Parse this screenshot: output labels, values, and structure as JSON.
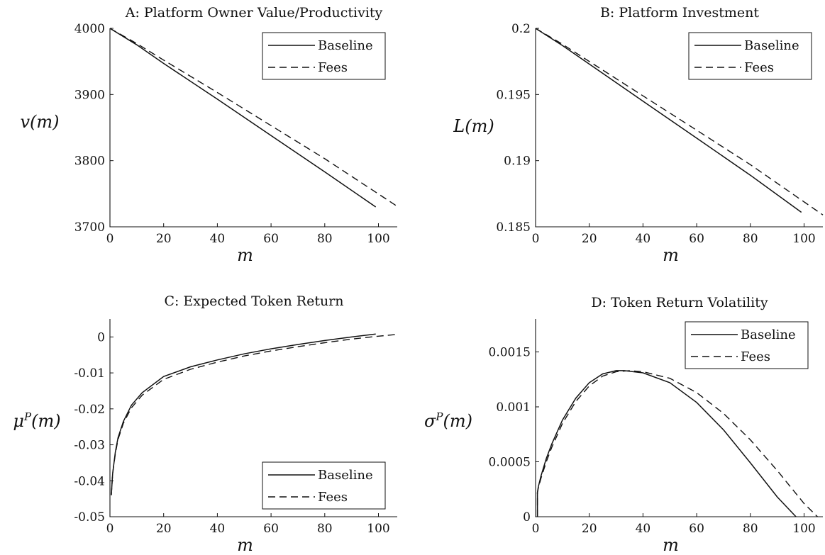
{
  "chart_data": [
    {
      "type": "line",
      "title": "A: Platform Owner Value/Productivity",
      "xlabel": "m",
      "ylabel": "v(m)",
      "xlim": [
        0,
        107
      ],
      "ylim": [
        3700,
        4000
      ],
      "xticks": [
        0,
        20,
        40,
        60,
        80,
        100
      ],
      "yticks": [
        3700,
        3800,
        3900,
        4000
      ],
      "ytick_labels": [
        "3700",
        "3800",
        "3900",
        "4000"
      ],
      "legend": "top-right",
      "series": [
        {
          "name": "Baseline",
          "style": "solid",
          "x": [
            0,
            10,
            20,
            40,
            60,
            80,
            99
          ],
          "y": [
            4000,
            3975,
            3947,
            3893,
            3838,
            3783,
            3730
          ]
        },
        {
          "name": "Fees",
          "style": "dashed",
          "x": [
            0,
            10,
            20,
            40,
            60,
            80,
            107
          ],
          "y": [
            4000,
            3977,
            3952,
            3903,
            3853,
            3803,
            3731
          ]
        }
      ]
    },
    {
      "type": "line",
      "title": "B: Platform Investment",
      "xlabel": "m",
      "ylabel": "L(m)",
      "xlim": [
        0,
        107
      ],
      "ylim": [
        0.185,
        0.2
      ],
      "xticks": [
        0,
        20,
        40,
        60,
        80,
        100
      ],
      "yticks": [
        0.185,
        0.19,
        0.195,
        0.2
      ],
      "ytick_labels": [
        "0.185",
        "0.19",
        "0.195",
        "0.2"
      ],
      "legend": "top-right",
      "series": [
        {
          "name": "Baseline",
          "style": "solid",
          "x": [
            0,
            10,
            20,
            40,
            60,
            80,
            99
          ],
          "y": [
            0.2,
            0.1987,
            0.1973,
            0.1945,
            0.1917,
            0.1889,
            0.1861
          ]
        },
        {
          "name": "Fees",
          "style": "dashed",
          "x": [
            0,
            10,
            20,
            40,
            60,
            80,
            107
          ],
          "y": [
            0.2,
            0.1988,
            0.1975,
            0.1949,
            0.1923,
            0.1897,
            0.1859
          ]
        }
      ]
    },
    {
      "type": "line",
      "title": "C: Expected Token Return",
      "xlabel": "m",
      "ylabel": "μ^P(m)",
      "xlim": [
        0,
        107
      ],
      "ylim": [
        -0.05,
        0.005
      ],
      "xticks": [
        0,
        20,
        40,
        60,
        80,
        100
      ],
      "yticks": [
        -0.05,
        -0.04,
        -0.03,
        -0.02,
        -0.01,
        0
      ],
      "ytick_labels": [
        "-0.05",
        "-0.04",
        "-0.03",
        "-0.02",
        "-0.01",
        "0"
      ],
      "legend": "bottom-right",
      "series": [
        {
          "name": "Baseline",
          "style": "solid",
          "x": [
            0.5,
            1,
            2,
            3,
            5,
            8,
            12,
            20,
            30,
            40,
            50,
            60,
            70,
            80,
            90,
            99
          ],
          "y": [
            -0.044,
            -0.038,
            -0.032,
            -0.028,
            -0.0235,
            -0.019,
            -0.0155,
            -0.011,
            -0.0083,
            -0.0064,
            -0.0047,
            -0.0033,
            -0.0021,
            -0.001,
            0.0,
            0.0008
          ]
        },
        {
          "name": "Fees",
          "style": "dashed",
          "x": [
            0.5,
            1,
            2,
            3,
            5,
            8,
            12,
            20,
            30,
            40,
            50,
            60,
            70,
            80,
            90,
            100,
            107
          ],
          "y": [
            -0.044,
            -0.038,
            -0.0325,
            -0.0285,
            -0.024,
            -0.0197,
            -0.0162,
            -0.0118,
            -0.009,
            -0.007,
            -0.0053,
            -0.0039,
            -0.0027,
            -0.0016,
            -0.0006,
            0.0002,
            0.0007
          ]
        }
      ]
    },
    {
      "type": "line",
      "title": "D: Token Return Volatility",
      "xlabel": "m",
      "ylabel": "σ^P(m)",
      "xlim": [
        0,
        107
      ],
      "ylim": [
        0,
        0.0018
      ],
      "xticks": [
        0,
        20,
        40,
        60,
        80,
        100
      ],
      "yticks": [
        0,
        0.0005,
        0.001,
        0.0015
      ],
      "ytick_labels": [
        "0",
        "0.0005",
        "0.001",
        "0.0015"
      ],
      "legend": "top-right",
      "series": [
        {
          "name": "Baseline",
          "style": "solid",
          "x": [
            0.7,
            0.7,
            1,
            2,
            4,
            6,
            10,
            15,
            20,
            25,
            30,
            33,
            40,
            50,
            60,
            70,
            80,
            90,
            97
          ],
          "y": [
            0,
            0.00022,
            0.00027,
            0.00037,
            0.00053,
            0.00066,
            0.00088,
            0.00108,
            0.00122,
            0.0013,
            0.00133,
            0.00133,
            0.00131,
            0.00122,
            0.00104,
            0.00079,
            0.00049,
            0.00018,
            0.0
          ]
        },
        {
          "name": "Fees",
          "style": "dashed",
          "x": [
            0.7,
            0.7,
            1,
            2,
            4,
            6,
            10,
            15,
            20,
            25,
            30,
            35,
            40,
            50,
            60,
            70,
            80,
            90,
            100,
            105
          ],
          "y": [
            0,
            0.00022,
            0.00026,
            0.00035,
            0.0005,
            0.00063,
            0.00085,
            0.00105,
            0.00119,
            0.00128,
            0.00132,
            0.00133,
            0.00132,
            0.00126,
            0.00113,
            0.00094,
            0.0007,
            0.00042,
            0.00012,
            0.0
          ]
        }
      ]
    }
  ]
}
